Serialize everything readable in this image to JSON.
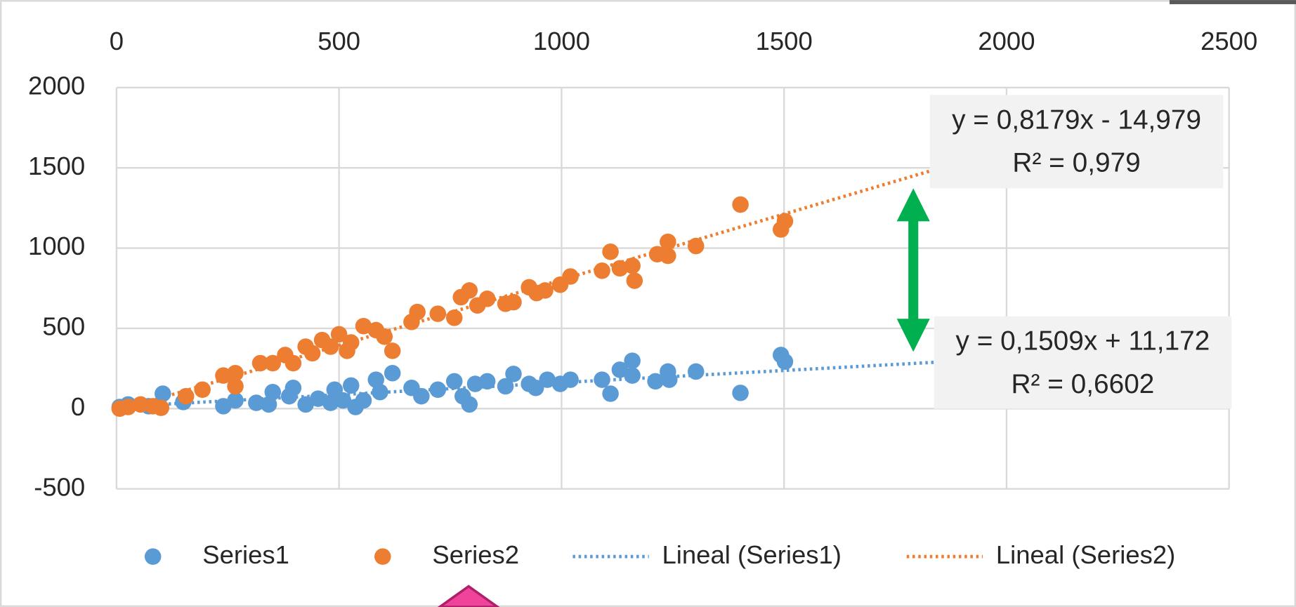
{
  "chart_data": {
    "type": "scatter",
    "xlim": [
      0,
      2500
    ],
    "xticks": [
      0,
      500,
      1000,
      1500,
      2000,
      2500
    ],
    "ylim": [
      -500,
      2000
    ],
    "yticks": [
      -500,
      0,
      500,
      1000,
      1500,
      2000
    ],
    "grid": true,
    "legend": "bottom",
    "series": [
      {
        "name": "Series1",
        "color": "#5b9bd5",
        "x": [
          7,
          26,
          72,
          104,
          150,
          240,
          267,
          314,
          342,
          351,
          388,
          397,
          425,
          453,
          481,
          490,
          509,
          527,
          537,
          555,
          583,
          592,
          620,
          663,
          685,
          722,
          759,
          778,
          793,
          806,
          833,
          874,
          892,
          927,
          942,
          968,
          997,
          1020,
          1091,
          1110,
          1131,
          1159,
          1159,
          1211,
          1239,
          1242,
          1302,
          1402,
          1493,
          1502
        ],
        "values": [
          10,
          26,
          15,
          93,
          41,
          15,
          51,
          36,
          26,
          103,
          77,
          129,
          26,
          62,
          36,
          118,
          51,
          144,
          10,
          51,
          180,
          103,
          221,
          129,
          77,
          118,
          170,
          77,
          26,
          154,
          170,
          139,
          216,
          154,
          129,
          180,
          154,
          180,
          180,
          93,
          242,
          298,
          206,
          170,
          231,
          180,
          231,
          98,
          334,
          293
        ],
        "trendline": {
          "name": "Lineal (Series1)",
          "slope": 0.1509,
          "intercept": 11.172,
          "equation": "y = 0,1509x + 11,172",
          "r2": "R² = 0,6602"
        }
      },
      {
        "name": "Series2",
        "color": "#ed7d31",
        "x": [
          7,
          26,
          54,
          82,
          100,
          156,
          193,
          240,
          267,
          267,
          323,
          351,
          379,
          397,
          425,
          440,
          462,
          481,
          500,
          518,
          527,
          555,
          583,
          602,
          620,
          663,
          676,
          722,
          759,
          774,
          793,
          811,
          833,
          874,
          892,
          927,
          944,
          963,
          997,
          1020,
          1091,
          1110,
          1131,
          1159,
          1164,
          1215,
          1239,
          1239,
          1302,
          1402,
          1493,
          1502
        ],
        "values": [
          0,
          10,
          26,
          15,
          5,
          77,
          118,
          206,
          221,
          139,
          283,
          283,
          334,
          283,
          386,
          345,
          427,
          386,
          463,
          360,
          412,
          514,
          489,
          448,
          360,
          540,
          602,
          591,
          566,
          694,
          736,
          643,
          684,
          653,
          663,
          756,
          720,
          736,
          772,
          823,
          859,
          977,
          874,
          890,
          797,
          962,
          1039,
          952,
          1013,
          1271,
          1116,
          1168
        ],
        "trendline": {
          "name": "Lineal (Series2)",
          "slope": 0.8179,
          "intercept": -14.979,
          "equation": "y = 0,8179x - 14,979",
          "r2": "R² = 0,979"
        }
      }
    ]
  }
}
